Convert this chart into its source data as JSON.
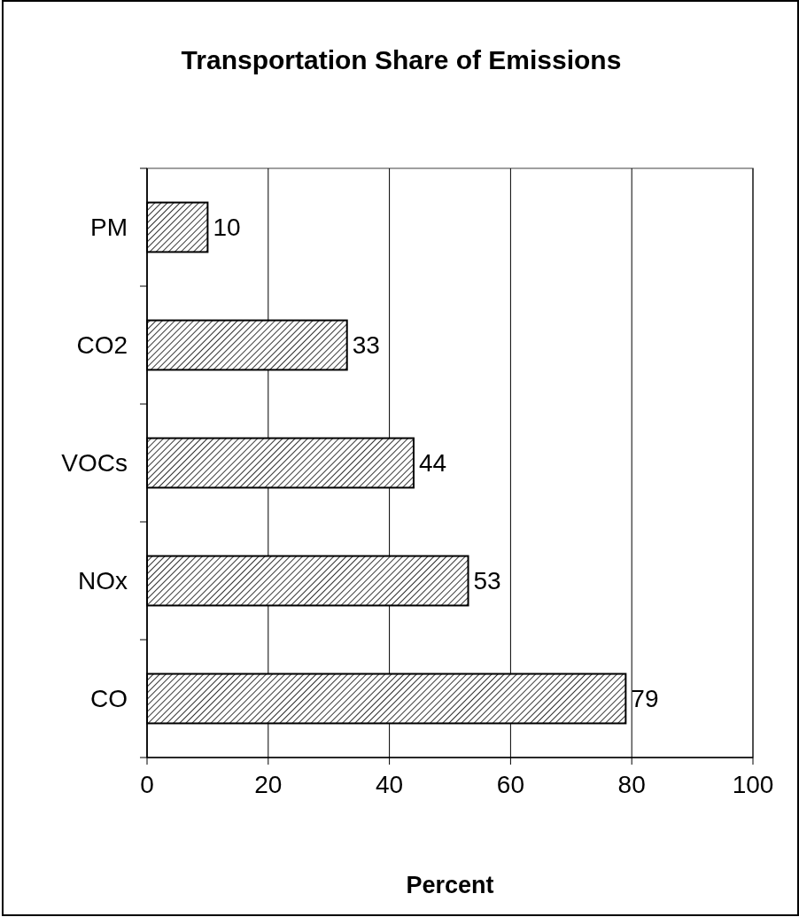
{
  "chart_data": {
    "type": "bar",
    "orientation": "horizontal",
    "title": "Transportation Share of Emissions",
    "xlabel": "Percent",
    "categories": [
      "PM",
      "CO2",
      "VOCs",
      "NOx",
      "CO"
    ],
    "values": [
      10,
      33,
      44,
      53,
      79
    ],
    "color": "#000000",
    "xlim": [
      0,
      100
    ],
    "xticks": [
      0,
      20,
      40,
      60,
      80,
      100
    ],
    "grid": "x",
    "data_labels": true
  }
}
